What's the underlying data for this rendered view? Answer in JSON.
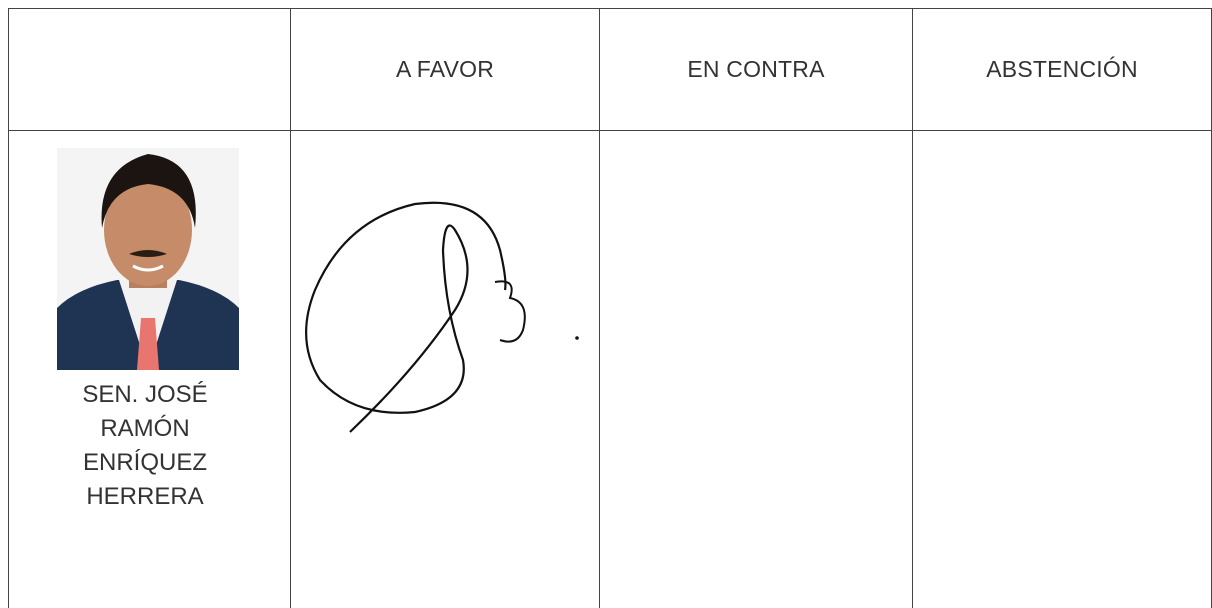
{
  "table": {
    "headers": [
      "A FAVOR",
      "EN CONTRA",
      "ABSTENCIÓN"
    ],
    "rows": [
      {
        "name": "SEN. JOSÉ RAMÓN ENRÍQUEZ HERRERA"
      }
    ]
  }
}
